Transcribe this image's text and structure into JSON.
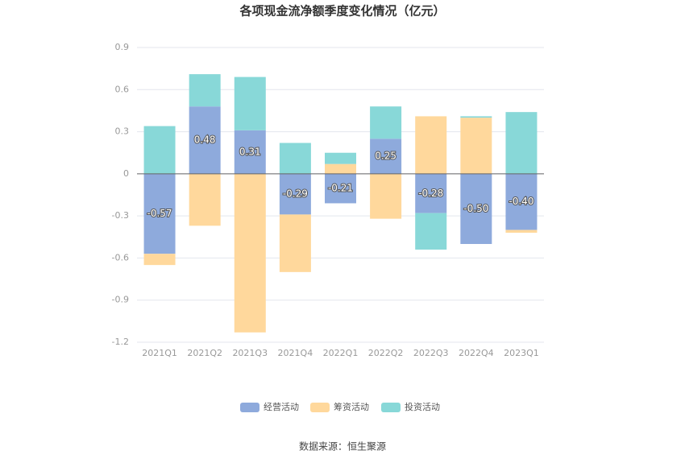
{
  "chart_data": {
    "type": "bar",
    "stacked": true,
    "title": "各项现金流净额季度变化情况（亿元）",
    "source": "数据来源：恒生聚源",
    "categories": [
      "2021Q1",
      "2021Q2",
      "2021Q3",
      "2021Q4",
      "2022Q1",
      "2022Q2",
      "2022Q3",
      "2022Q4",
      "2023Q1"
    ],
    "series": [
      {
        "name": "经营活动",
        "color": "#8eaadc",
        "values": [
          -0.57,
          0.48,
          0.31,
          -0.29,
          -0.21,
          0.25,
          -0.28,
          -0.5,
          -0.4
        ],
        "value_labels": [
          "-0.57",
          "0.48",
          "0.31",
          "-0.29",
          "-0.21",
          "0.25",
          "-0.28",
          "-0.50",
          "-0.40"
        ]
      },
      {
        "name": "筹资活动",
        "color": "#ffd89c",
        "values": [
          -0.08,
          -0.37,
          -1.13,
          -0.41,
          0.07,
          -0.32,
          0.41,
          0.4,
          -0.02
        ]
      },
      {
        "name": "投资活动",
        "color": "#88d8d8",
        "values": [
          0.34,
          0.23,
          0.38,
          0.22,
          0.08,
          0.23,
          -0.26,
          0.01,
          0.44
        ]
      }
    ],
    "ylim": [
      -1.2,
      0.9
    ],
    "yticks": [
      0.9,
      0.6,
      0.3,
      0,
      -0.3,
      -0.6,
      -0.9,
      -1.2
    ],
    "grid": true
  }
}
